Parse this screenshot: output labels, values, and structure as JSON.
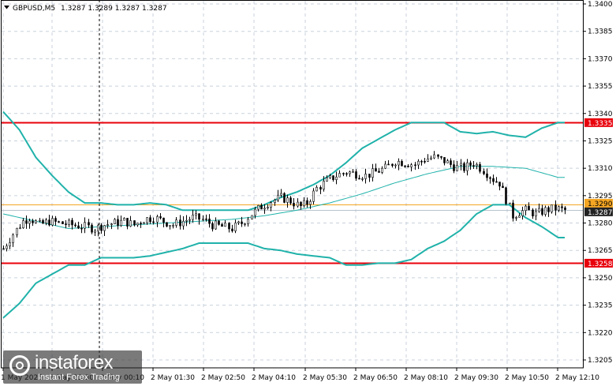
{
  "header": {
    "symbol": "GBPUSD,M5",
    "ohlc": "1.3287 1.3289 1.3287 1.3287"
  },
  "watermark": {
    "brand": "instaforex",
    "tagline": "Instant Forex Trading"
  },
  "colors": {
    "background": "#ffffff",
    "grid": "#c8d2dc",
    "candle": "#000000",
    "bollinger_bands": "#20b2aa",
    "resistance": "#e8000b",
    "support": "#e8000b",
    "current_price": "#222222",
    "level_line": "#f5a623"
  },
  "chart_data": {
    "type": "candlestick",
    "title": "GBPUSD,M5",
    "ylim": [
      1.3199,
      1.34
    ],
    "grid": true,
    "y_ticks": [
      "1.3400",
      "1.3385",
      "1.3370",
      "1.3355",
      "1.3340",
      "1.3325",
      "1.3310",
      "1.3295",
      "1.3280",
      "1.3265",
      "1.3250",
      "1.3235",
      "1.3220",
      "1.3205"
    ],
    "x_ticks": [
      "1 May 2025",
      "1 May 23:30",
      "2 May 00:10",
      "2 May 01:30",
      "2 May 02:50",
      "2 May 04:10",
      "2 May 05:30",
      "2 May 06:50",
      "2 May 08:10",
      "2 May 09:30",
      "2 May 10:50",
      "2 May 12:10"
    ],
    "horizontal_levels": [
      {
        "label": "1.3335",
        "value": 1.3335,
        "role": "resistance"
      },
      {
        "label": "1.3290",
        "value": 1.329,
        "role": "level"
      },
      {
        "label": "1.3287",
        "value": 1.3287,
        "role": "current_price"
      },
      {
        "label": "1.3258",
        "value": 1.3258,
        "role": "support"
      }
    ],
    "close_path": [
      [
        0,
        1.3266
      ],
      [
        3,
        1.3274
      ],
      [
        6,
        1.3281
      ],
      [
        8,
        1.3283
      ],
      [
        11,
        1.3279
      ],
      [
        14,
        1.3281
      ],
      [
        17,
        1.328
      ],
      [
        21,
        1.3279
      ],
      [
        25,
        1.3278
      ],
      [
        28,
        1.3277
      ],
      [
        31,
        1.3279
      ],
      [
        34,
        1.328
      ],
      [
        37,
        1.3281
      ],
      [
        40,
        1.3279
      ],
      [
        43,
        1.3282
      ],
      [
        46,
        1.3283
      ],
      [
        49,
        1.3281
      ],
      [
        52,
        1.3279
      ],
      [
        55,
        1.3281
      ],
      [
        58,
        1.3283
      ],
      [
        61,
        1.3282
      ],
      [
        64,
        1.3279
      ],
      [
        67,
        1.3278
      ],
      [
        70,
        1.3277
      ],
      [
        73,
        1.328
      ],
      [
        76,
        1.3285
      ],
      [
        79,
        1.3289
      ],
      [
        82,
        1.3292
      ],
      [
        85,
        1.3294
      ],
      [
        88,
        1.3292
      ],
      [
        91,
        1.3289
      ],
      [
        93,
        1.3291
      ],
      [
        96,
        1.3299
      ],
      [
        99,
        1.3303
      ],
      [
        102,
        1.3306
      ],
      [
        105,
        1.3308
      ],
      [
        108,
        1.3307
      ],
      [
        111,
        1.3306
      ],
      [
        114,
        1.3308
      ],
      [
        117,
        1.331
      ],
      [
        120,
        1.3314
      ],
      [
        123,
        1.3313
      ],
      [
        126,
        1.3312
      ],
      [
        129,
        1.3315
      ],
      [
        132,
        1.3316
      ],
      [
        135,
        1.3314
      ],
      [
        138,
        1.3311
      ],
      [
        141,
        1.331
      ],
      [
        144,
        1.3313
      ],
      [
        147,
        1.3309
      ],
      [
        150,
        1.3304
      ],
      [
        152,
        1.3302
      ],
      [
        154,
        1.3293
      ],
      [
        156,
        1.3284
      ],
      [
        158,
        1.3286
      ],
      [
        160,
        1.3287
      ],
      [
        163,
        1.3285
      ],
      [
        166,
        1.3287
      ],
      [
        169,
        1.3288
      ],
      [
        172,
        1.3287
      ]
    ],
    "bollinger_upper": [
      [
        0,
        1.3341
      ],
      [
        5,
        1.3331
      ],
      [
        10,
        1.3316
      ],
      [
        15,
        1.3306
      ],
      [
        20,
        1.3297
      ],
      [
        25,
        1.3291
      ],
      [
        30,
        1.3291
      ],
      [
        35,
        1.329
      ],
      [
        40,
        1.329
      ],
      [
        45,
        1.3291
      ],
      [
        50,
        1.329
      ],
      [
        55,
        1.3287
      ],
      [
        60,
        1.3287
      ],
      [
        65,
        1.3287
      ],
      [
        70,
        1.3287
      ],
      [
        75,
        1.3287
      ],
      [
        80,
        1.329
      ],
      [
        85,
        1.3294
      ],
      [
        90,
        1.3297
      ],
      [
        95,
        1.3301
      ],
      [
        100,
        1.3306
      ],
      [
        105,
        1.3313
      ],
      [
        110,
        1.3321
      ],
      [
        115,
        1.3326
      ],
      [
        120,
        1.3331
      ],
      [
        125,
        1.3335
      ],
      [
        130,
        1.3335
      ],
      [
        135,
        1.3335
      ],
      [
        140,
        1.333
      ],
      [
        145,
        1.3329
      ],
      [
        150,
        1.333
      ],
      [
        155,
        1.3328
      ],
      [
        160,
        1.3327
      ],
      [
        165,
        1.3332
      ],
      [
        170,
        1.3335
      ],
      [
        172,
        1.3335
      ]
    ],
    "bollinger_middle": [
      [
        0,
        1.3285
      ],
      [
        10,
        1.3281
      ],
      [
        20,
        1.3277
      ],
      [
        30,
        1.3278
      ],
      [
        40,
        1.3279
      ],
      [
        50,
        1.328
      ],
      [
        60,
        1.3281
      ],
      [
        70,
        1.3282
      ],
      [
        80,
        1.3284
      ],
      [
        90,
        1.3287
      ],
      [
        100,
        1.3291
      ],
      [
        110,
        1.3296
      ],
      [
        120,
        1.3302
      ],
      [
        130,
        1.3307
      ],
      [
        140,
        1.3311
      ],
      [
        150,
        1.3311
      ],
      [
        160,
        1.331
      ],
      [
        170,
        1.3305
      ]
    ],
    "bollinger_lower": [
      [
        0,
        1.3228
      ],
      [
        5,
        1.3236
      ],
      [
        10,
        1.3247
      ],
      [
        15,
        1.3252
      ],
      [
        20,
        1.3257
      ],
      [
        25,
        1.3257
      ],
      [
        30,
        1.3261
      ],
      [
        35,
        1.3261
      ],
      [
        40,
        1.3261
      ],
      [
        45,
        1.3262
      ],
      [
        50,
        1.3264
      ],
      [
        55,
        1.3266
      ],
      [
        60,
        1.3269
      ],
      [
        65,
        1.3269
      ],
      [
        70,
        1.3269
      ],
      [
        75,
        1.3269
      ],
      [
        80,
        1.3266
      ],
      [
        85,
        1.3265
      ],
      [
        90,
        1.3263
      ],
      [
        95,
        1.3262
      ],
      [
        100,
        1.3261
      ],
      [
        105,
        1.3257
      ],
      [
        110,
        1.3257
      ],
      [
        115,
        1.3258
      ],
      [
        120,
        1.3258
      ],
      [
        125,
        1.326
      ],
      [
        130,
        1.3266
      ],
      [
        135,
        1.327
      ],
      [
        140,
        1.3276
      ],
      [
        145,
        1.3285
      ],
      [
        150,
        1.329
      ],
      [
        155,
        1.329
      ],
      [
        160,
        1.3283
      ],
      [
        165,
        1.3278
      ],
      [
        170,
        1.3272
      ],
      [
        172,
        1.3272
      ]
    ]
  }
}
